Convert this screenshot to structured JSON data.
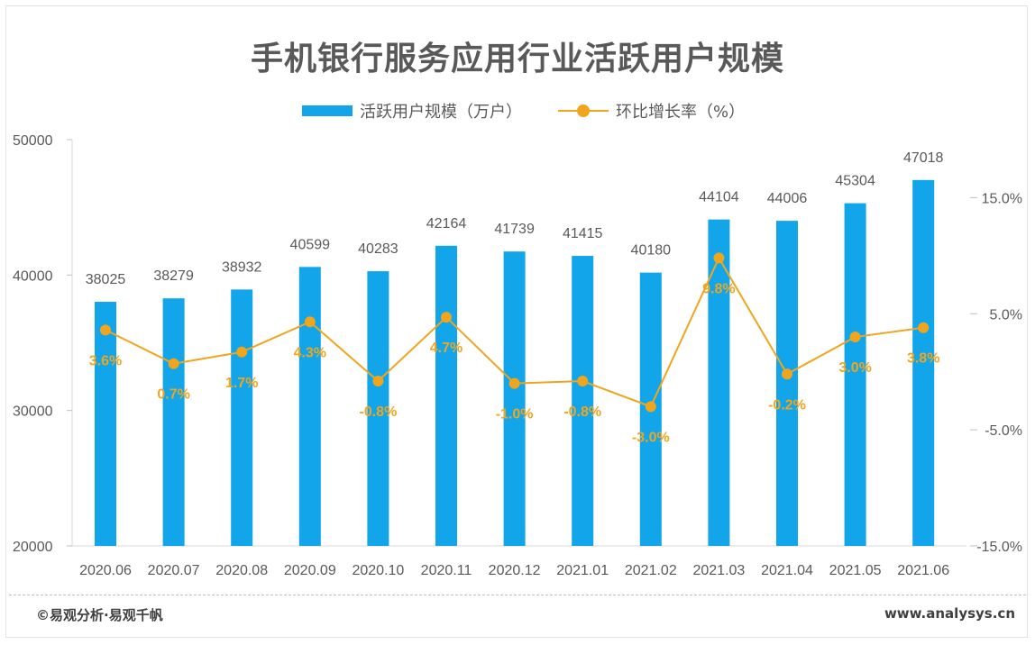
{
  "chart_data": {
    "type": "bar",
    "title": "手机银行服务应用行业活跃用户规模",
    "categories": [
      "2020.06",
      "2020.07",
      "2020.08",
      "2020.09",
      "2020.10",
      "2020.11",
      "2020.12",
      "2021.01",
      "2021.02",
      "2021.03",
      "2021.04",
      "2021.05",
      "2021.06"
    ],
    "series": [
      {
        "name": "活跃用户规模（万户）",
        "type": "bar",
        "axis": "left",
        "values": [
          38025,
          38279,
          38932,
          40599,
          40283,
          42164,
          41739,
          41415,
          40180,
          44104,
          44006,
          45304,
          47018
        ],
        "color": "#12A5EA"
      },
      {
        "name": "环比增长率（%）",
        "type": "line",
        "axis": "right",
        "values": [
          3.6,
          0.7,
          1.7,
          4.3,
          -0.8,
          4.7,
          -1.0,
          -0.8,
          -3.0,
          9.8,
          -0.2,
          3.0,
          3.8
        ],
        "labels": [
          "3.6%",
          "0.7%",
          "1.7%",
          "4.3%",
          "-0.8%",
          "4.7%",
          "-1.0%",
          "-0.8%",
          "-3.0%",
          "9.8%",
          "-0.2%",
          "3.0%",
          "3.8%"
        ],
        "color": "#F0A51E"
      }
    ],
    "y_left": {
      "ylim": [
        20000,
        50000
      ],
      "ticks": [
        "20000",
        "30000",
        "40000",
        "50000"
      ]
    },
    "y_right": {
      "ylim": [
        -15,
        20
      ],
      "ticks": [
        "-15.0%",
        "-5.0%",
        "5.0%",
        "15.0%"
      ],
      "tick_values": [
        -15,
        -5,
        5,
        15
      ]
    },
    "legend_position": "top-center",
    "grid": false
  },
  "footer": {
    "source": "©易观分析·易观千帆",
    "website": "www.analysys.cn"
  }
}
